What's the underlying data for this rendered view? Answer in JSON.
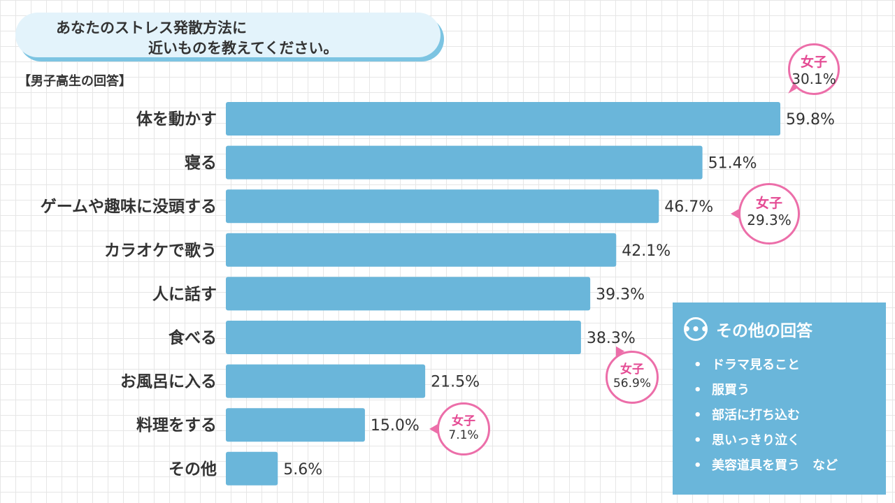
{
  "question": {
    "line1": "あなたのストレス発散方法に",
    "line2": "近いものを教えてください。"
  },
  "subtitle": "【男子高生の回答】",
  "chart_data": {
    "type": "bar",
    "orientation": "horizontal",
    "categories": [
      "体を動かす",
      "寝る",
      "ゲームや趣味に没頭する",
      "カラオケで歌う",
      "人に話す",
      "食べる",
      "お風呂に入る",
      "料理をする",
      "その他"
    ],
    "values": [
      59.8,
      51.4,
      46.7,
      42.1,
      39.3,
      38.3,
      21.5,
      15.0,
      5.6
    ],
    "value_labels": [
      "59.8%",
      "51.4%",
      "46.7%",
      "42.1%",
      "39.3%",
      "38.3%",
      "21.5%",
      "15.0%",
      "5.6%"
    ],
    "xlim": [
      0,
      60
    ],
    "bar_color": "#6ab6da",
    "annotations": [
      {
        "category": "体を動かす",
        "label": "女子",
        "value_label": "30.1%",
        "value": 30.1
      },
      {
        "category": "ゲームや趣味に没頭する",
        "label": "女子",
        "value_label": "29.3%",
        "value": 29.3
      },
      {
        "category": "食べる",
        "label": "女子",
        "value_label": "56.9%",
        "value": 56.9
      },
      {
        "category": "料理をする",
        "label": "女子",
        "value_label": "7.1%",
        "value": 7.1
      }
    ],
    "annotation_color": "#ec6ea9"
  },
  "other_answers": {
    "icon": "ellipsis-icon",
    "title": "その他の回答",
    "items": [
      "ドラマ見ること",
      "服買う",
      "部活に打ち込む",
      "思いっきり泣く",
      "美容道具を買う　など"
    ],
    "bullet": "•"
  }
}
